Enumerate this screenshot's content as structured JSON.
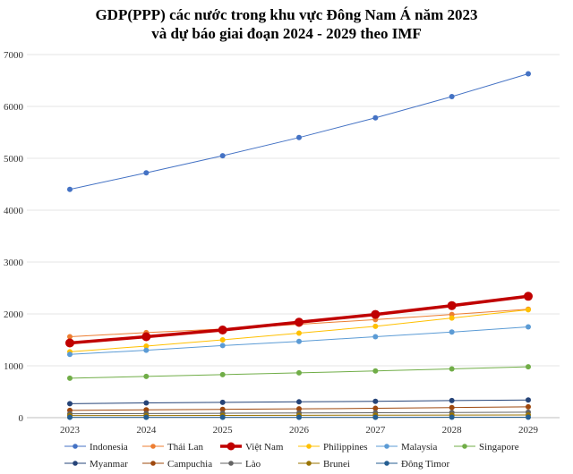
{
  "chart_data": {
    "type": "line",
    "title_line1": "GDP(PPP) các nước trong khu vực Đông Nam Á năm 2023",
    "title_line2": "và dự báo giai đoạn 2024 - 2029 theo IMF",
    "x": [
      "2023",
      "2024",
      "2025",
      "2026",
      "2027",
      "2028",
      "2029"
    ],
    "ylim": [
      0,
      7000
    ],
    "yticks": [
      0,
      1000,
      2000,
      3000,
      4000,
      5000,
      6000,
      7000
    ],
    "grid": true,
    "legend_position": "bottom",
    "series": [
      {
        "name": "Indonesia",
        "color": "#4472C4",
        "values": [
          4400,
          4720,
          5050,
          5400,
          5780,
          6190,
          6630
        ]
      },
      {
        "name": "Thái Lan",
        "color": "#ED7D31",
        "values": [
          1560,
          1640,
          1710,
          1800,
          1890,
          1990,
          2090
        ]
      },
      {
        "name": "Việt Nam",
        "color": "#C00000",
        "values": [
          1440,
          1560,
          1690,
          1840,
          1990,
          2160,
          2340
        ]
      },
      {
        "name": "Philippines",
        "color": "#FFC000",
        "values": [
          1270,
          1380,
          1500,
          1630,
          1760,
          1920,
          2080
        ]
      },
      {
        "name": "Malaysia",
        "color": "#5B9BD5",
        "values": [
          1220,
          1300,
          1390,
          1470,
          1560,
          1650,
          1750
        ]
      },
      {
        "name": "Singapore",
        "color": "#70AD47",
        "values": [
          760,
          795,
          830,
          865,
          900,
          940,
          980
        ]
      },
      {
        "name": "Myanmar",
        "color": "#264478",
        "values": [
          270,
          285,
          295,
          305,
          315,
          330,
          340
        ]
      },
      {
        "name": "Campuchia",
        "color": "#9E480E",
        "values": [
          140,
          150,
          160,
          170,
          180,
          195,
          210
        ]
      },
      {
        "name": "Lào",
        "color": "#636363",
        "values": [
          75,
          80,
          85,
          90,
          95,
          100,
          105
        ]
      },
      {
        "name": "Brunei",
        "color": "#997300",
        "values": [
          40,
          42,
          44,
          46,
          48,
          50,
          52
        ]
      },
      {
        "name": "Đông Timor",
        "color": "#255E91",
        "values": [
          6,
          6,
          7,
          7,
          7,
          8,
          8
        ]
      }
    ]
  }
}
